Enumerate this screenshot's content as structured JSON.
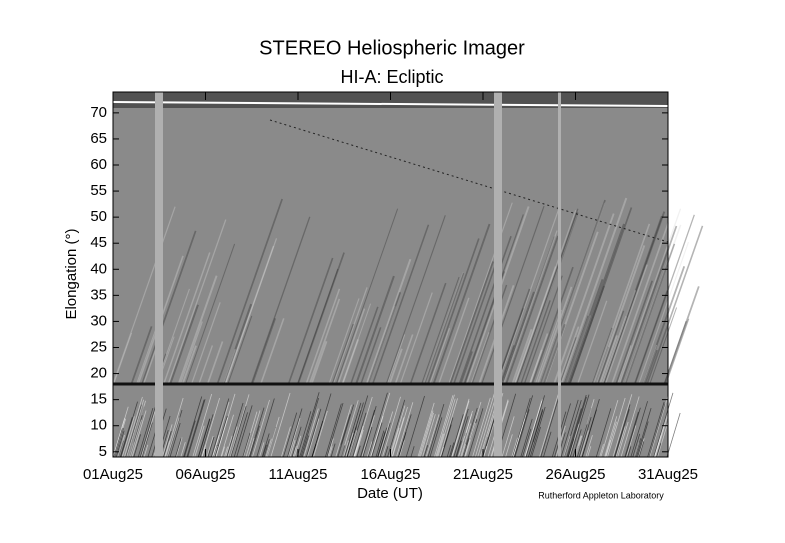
{
  "chart_data": {
    "type": "image",
    "title": "STEREO Heliospheric Imager",
    "subtitle": "HI-A: Ecliptic",
    "x_label": "Date (UT)",
    "y_label": "Elongation (°)",
    "credit": "Rutherford Appleton Laboratory",
    "xlim": [
      "2025-08-01",
      "2025-08-31"
    ],
    "xticks": [
      {
        "value": "2025-08-01",
        "label": "01Aug25"
      },
      {
        "value": "2025-08-06",
        "label": "06Aug25"
      },
      {
        "value": "2025-08-11",
        "label": "11Aug25"
      },
      {
        "value": "2025-08-16",
        "label": "16Aug25"
      },
      {
        "value": "2025-08-21",
        "label": "21Aug25"
      },
      {
        "value": "2025-08-26",
        "label": "26Aug25"
      },
      {
        "value": "2025-08-31",
        "label": "31Aug25"
      }
    ],
    "ylim": [
      4,
      74
    ],
    "yticks": [
      5,
      10,
      15,
      20,
      25,
      30,
      35,
      40,
      45,
      50,
      55,
      60,
      65,
      70
    ]
  }
}
